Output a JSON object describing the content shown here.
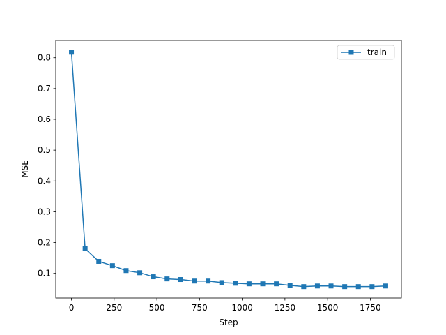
{
  "chart_data": {
    "type": "line",
    "x_label": "Step",
    "y_label": "MSE",
    "x": [
      0,
      80,
      160,
      240,
      320,
      400,
      480,
      560,
      640,
      720,
      800,
      880,
      960,
      1040,
      1120,
      1200,
      1280,
      1360,
      1440,
      1520,
      1600,
      1680,
      1760,
      1840
    ],
    "series": [
      {
        "name": "train",
        "color": "#1f77b4",
        "values": [
          0.818,
          0.18,
          0.139,
          0.125,
          0.109,
          0.102,
          0.089,
          0.082,
          0.08,
          0.075,
          0.075,
          0.07,
          0.068,
          0.066,
          0.066,
          0.066,
          0.061,
          0.057,
          0.059,
          0.059,
          0.057,
          0.057,
          0.057,
          0.059
        ]
      }
    ],
    "xlim": [
      -92,
      1932
    ],
    "ylim": [
      0.02,
      0.856
    ],
    "xticks": [
      0,
      250,
      500,
      750,
      1000,
      1250,
      1500,
      1750
    ],
    "yticks": [
      0.1,
      0.2,
      0.3,
      0.4,
      0.5,
      0.6,
      0.7,
      0.8
    ],
    "legend": "upper right",
    "grid": false
  }
}
